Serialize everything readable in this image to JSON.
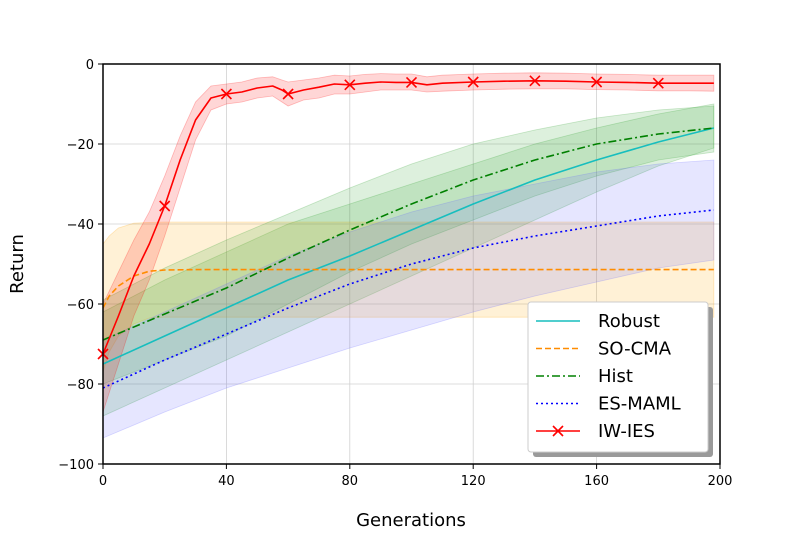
{
  "chart_data": {
    "type": "line",
    "title": "",
    "xlabel": "Generations",
    "ylabel": "Return",
    "xlim": [
      0,
      200
    ],
    "ylim": [
      -100,
      0
    ],
    "xticks": [
      0,
      40,
      80,
      120,
      160,
      200
    ],
    "yticks": [
      0,
      -20,
      -40,
      -60,
      -80,
      -100
    ],
    "grid": true,
    "legend_position": "lower-right",
    "series": [
      {
        "name": "Robust",
        "color": "#17bebe",
        "dash": "solid",
        "marker": "none",
        "band_color": "#2ca02c",
        "x": [
          0,
          20,
          40,
          60,
          80,
          100,
          120,
          140,
          160,
          180,
          198
        ],
        "y": [
          -75,
          -68,
          -61,
          -54,
          -48,
          -41.5,
          -35,
          -29,
          -24,
          -19.5,
          -16
        ],
        "lower": [
          -88,
          -81,
          -74,
          -67,
          -60,
          -53,
          -46,
          -39,
          -32,
          -25.5,
          -21
        ],
        "upper": [
          -62,
          -54,
          -47,
          -40,
          -35,
          -30,
          -25,
          -20,
          -16,
          -12.5,
          -10
        ]
      },
      {
        "name": "SO-CMA",
        "color": "#ff8c00",
        "dash": "dashed",
        "marker": "none",
        "band_color": "#ffa500",
        "x": [
          0,
          2,
          5,
          10,
          15,
          20,
          30,
          40,
          60,
          80,
          100,
          120,
          140,
          160,
          180,
          198
        ],
        "y": [
          -61,
          -58,
          -55.5,
          -53,
          -51.8,
          -51.5,
          -51.4,
          -51.4,
          -51.4,
          -51.4,
          -51.4,
          -51.4,
          -51.4,
          -51.4,
          -51.4,
          -51.4
        ],
        "lower": [
          -77,
          -72,
          -68,
          -65,
          -63.5,
          -63.3,
          -63.3,
          -63.3,
          -63.3,
          -63.3,
          -63.3,
          -63.3,
          -63.3,
          -63.3,
          -63.3,
          -63.3
        ],
        "upper": [
          -45,
          -43,
          -41,
          -39.8,
          -39.6,
          -39.5,
          -39.5,
          -39.5,
          -39.5,
          -39.5,
          -39.5,
          -39.5,
          -39.5,
          -39.5,
          -39.5,
          -39.5
        ]
      },
      {
        "name": "Hist",
        "color": "#008000",
        "dash": "dashdot",
        "marker": "none",
        "band_color": "#2ca02c",
        "x": [
          0,
          20,
          40,
          60,
          80,
          100,
          120,
          140,
          160,
          180,
          198
        ],
        "y": [
          -69,
          -62.5,
          -56,
          -48.5,
          -41.5,
          -35,
          -29,
          -24,
          -20,
          -17.5,
          -16
        ],
        "lower": [
          -80,
          -74,
          -68,
          -60,
          -52,
          -45,
          -39,
          -33,
          -28,
          -24,
          -22
        ],
        "upper": [
          -59,
          -51,
          -44,
          -37.5,
          -31,
          -25,
          -20,
          -16.5,
          -13.5,
          -11.5,
          -10.5
        ]
      },
      {
        "name": "ES-MAML",
        "color": "#0000ff",
        "dash": "dotted",
        "marker": "none",
        "band_color": "#6666ff",
        "x": [
          0,
          20,
          40,
          60,
          80,
          100,
          120,
          140,
          160,
          180,
          198
        ],
        "y": [
          -81,
          -74,
          -67.5,
          -61,
          -55,
          -50,
          -46,
          -43,
          -40.5,
          -38,
          -36.5
        ],
        "lower": [
          -93.5,
          -87,
          -81,
          -76,
          -71,
          -66.5,
          -62,
          -58,
          -54.5,
          -51,
          -49
        ],
        "upper": [
          -69,
          -62,
          -55,
          -48,
          -42,
          -37,
          -33,
          -30,
          -27,
          -25,
          -24
        ]
      },
      {
        "name": "IW-IES",
        "color": "#ff0000",
        "dash": "solid",
        "marker": "x",
        "band_color": "#ff0000",
        "x": [
          0,
          5,
          10,
          15,
          20,
          25,
          30,
          35,
          40,
          45,
          50,
          55,
          58,
          60,
          65,
          70,
          75,
          80,
          85,
          90,
          95,
          100,
          105,
          110,
          120,
          130,
          140,
          150,
          160,
          170,
          180,
          190,
          198
        ],
        "y": [
          -72.5,
          -63,
          -53,
          -45,
          -35.5,
          -24,
          -14,
          -8.5,
          -7.5,
          -7,
          -6,
          -5.5,
          -6.5,
          -7.5,
          -6.5,
          -5.8,
          -5,
          -5.2,
          -4.8,
          -4.5,
          -4.6,
          -4.6,
          -5.2,
          -4.8,
          -4.5,
          -4.3,
          -4.2,
          -4.3,
          -4.5,
          -4.6,
          -4.8,
          -4.8,
          -4.8
        ],
        "lower": [
          -87,
          -75,
          -63,
          -54,
          -43,
          -31,
          -19,
          -11.5,
          -10,
          -9.5,
          -8.5,
          -8,
          -9.5,
          -10.5,
          -9,
          -8.5,
          -7.5,
          -7.5,
          -7,
          -6.5,
          -6.5,
          -6.5,
          -7,
          -6.8,
          -6.5,
          -6.3,
          -6.2,
          -6.2,
          -6.4,
          -6.5,
          -6.7,
          -6.7,
          -6.8
        ],
        "upper": [
          -60,
          -52,
          -44,
          -37,
          -28,
          -18,
          -9.5,
          -5.5,
          -5,
          -4.5,
          -3.5,
          -3.2,
          -4,
          -4.5,
          -4,
          -3.5,
          -2.8,
          -3,
          -2.6,
          -2.4,
          -2.5,
          -2.5,
          -3.2,
          -2.8,
          -2.5,
          -2.3,
          -2.2,
          -2.3,
          -2.5,
          -2.6,
          -2.8,
          -2.8,
          -2.8
        ],
        "marker_x": [
          0,
          20,
          40,
          60,
          80,
          100,
          120,
          140,
          160,
          180
        ],
        "marker_y": [
          -72.5,
          -35.5,
          -7.5,
          -7.5,
          -5.2,
          -4.6,
          -4.5,
          -4.2,
          -4.5,
          -4.8
        ]
      }
    ]
  }
}
